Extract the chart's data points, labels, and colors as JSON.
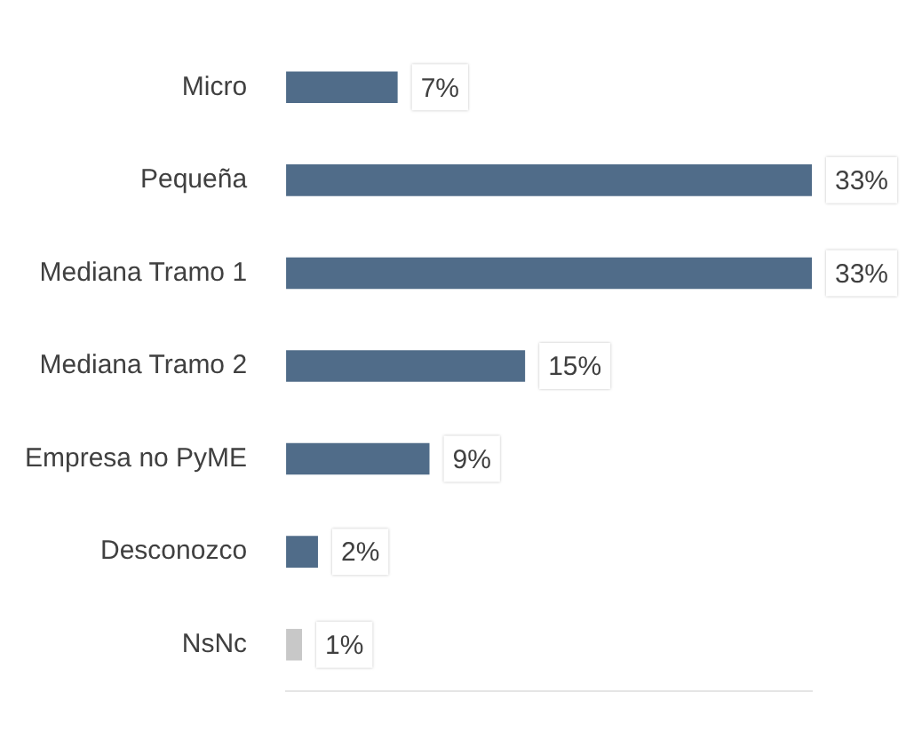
{
  "chart_data": {
    "type": "bar",
    "orientation": "horizontal",
    "relative": false,
    "categories": [
      "Micro",
      "Pequeña",
      "Mediana Tramo 1",
      "Mediana Tramo 2",
      "Empresa no PyME",
      "Desconozco",
      "NsNc"
    ],
    "values": [
      7,
      33,
      33,
      15,
      9,
      2,
      1
    ],
    "colors": [
      "#506c89",
      "#506c89",
      "#506c89",
      "#506c89",
      "#506c89",
      "#506c89",
      "#c8c8c8"
    ],
    "value_labels": [
      "7%",
      "33%",
      "33%",
      "15%",
      "9%",
      "2%",
      "1%"
    ],
    "grid": false,
    "legend": false,
    "tick_labels": "y"
  }
}
